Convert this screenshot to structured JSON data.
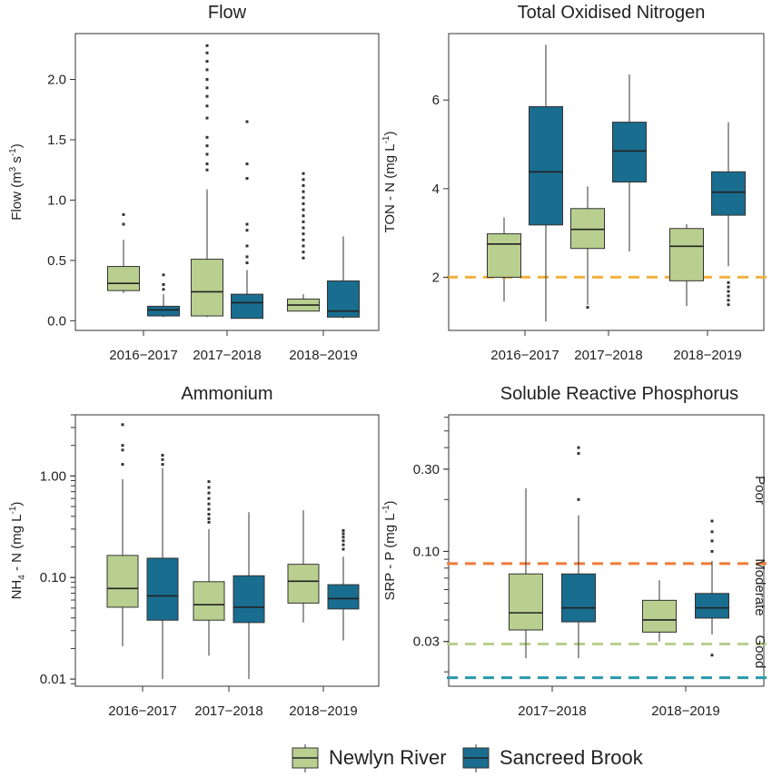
{
  "colors": {
    "newlyn": "#b9cf8f",
    "sancreed": "#196d8f",
    "orange": "#f2b13f",
    "poor": "#ef7b39",
    "good": "#b9cf8f",
    "high": "#2a98ad"
  },
  "legend": [
    {
      "label": "Newlyn River",
      "color": "#b9cf8f"
    },
    {
      "label": "Sancreed Brook",
      "color": "#196d8f"
    }
  ],
  "chart_data": [
    {
      "type": "box",
      "title": "Flow",
      "ylabel": "Flow (m³ s⁻¹)",
      "ylabel_parts": [
        "Flow (m",
        "3",
        " s",
        "-1",
        ")"
      ],
      "scale": "linear",
      "ylim": [
        -0.08,
        2.38
      ],
      "yticks": [
        0.0,
        0.5,
        1.0,
        1.5,
        2.0
      ],
      "ytick_labels": [
        "0.0",
        "0.5",
        "1.0",
        "1.5",
        "2.0"
      ],
      "categories": [
        "2016−2017",
        "2017−2018",
        "2018−2019"
      ],
      "series": [
        {
          "name": "Newlyn River",
          "color": "#b9cf8f",
          "boxes": [
            {
              "category": "2016−2017",
              "min": 0.23,
              "q1": 0.25,
              "median": 0.31,
              "q3": 0.45,
              "max": 0.67,
              "outliers": [
                0.8,
                0.88
              ]
            },
            {
              "category": "2017−2018",
              "min": 0.03,
              "q1": 0.04,
              "median": 0.24,
              "q3": 0.51,
              "max": 1.09,
              "outliers": [
                1.25,
                1.3,
                1.38,
                1.45,
                1.52,
                1.68,
                1.78,
                1.86,
                1.93,
                2.0,
                2.08,
                2.15,
                2.22,
                2.28
              ]
            },
            {
              "category": "2018−2019",
              "min": 0.08,
              "q1": 0.08,
              "median": 0.13,
              "q3": 0.18,
              "max": 0.22,
              "outliers": [
                0.52,
                0.57,
                0.62,
                0.67,
                0.72,
                0.77,
                0.82,
                0.87,
                0.92,
                0.97,
                1.02,
                1.07,
                1.12,
                1.17,
                1.22
              ]
            }
          ]
        },
        {
          "name": "Sancreed Brook",
          "color": "#196d8f",
          "boxes": [
            {
              "category": "2016−2017",
              "min": 0.03,
              "q1": 0.04,
              "median": 0.09,
              "q3": 0.12,
              "max": 0.22,
              "outliers": [
                0.26,
                0.3,
                0.38
              ]
            },
            {
              "category": "2017−2018",
              "min": 0.02,
              "q1": 0.02,
              "median": 0.15,
              "q3": 0.22,
              "max": 0.42,
              "outliers": [
                0.48,
                0.53,
                0.62,
                0.75,
                0.8,
                1.18,
                1.3,
                1.65
              ]
            },
            {
              "category": "2018−2019",
              "min": 0.02,
              "q1": 0.03,
              "median": 0.08,
              "q3": 0.33,
              "max": 0.7,
              "outliers": []
            }
          ]
        }
      ],
      "reference_lines": []
    },
    {
      "type": "box",
      "title": "Total Oxidised Nitrogen",
      "ylabel": "TON - N (mg L⁻¹)",
      "ylabel_parts": [
        "TON - N (mg L",
        "-1",
        ")"
      ],
      "scale": "linear",
      "ylim": [
        0.8,
        7.5
      ],
      "yticks": [
        2,
        4,
        6
      ],
      "ytick_labels": [
        "2",
        "4",
        "6"
      ],
      "categories": [
        "2016−2017",
        "2017−2018",
        "2018−2019"
      ],
      "series": [
        {
          "name": "Newlyn River",
          "color": "#b9cf8f",
          "boxes": [
            {
              "category": "2016−2017",
              "min": 1.45,
              "q1": 2.0,
              "median": 2.75,
              "q3": 2.98,
              "max": 3.35,
              "outliers": []
            },
            {
              "category": "2017−2018",
              "min": 1.38,
              "q1": 2.65,
              "median": 3.08,
              "q3": 3.55,
              "max": 4.05,
              "outliers": [
                1.32
              ]
            },
            {
              "category": "2018−2019",
              "min": 1.35,
              "q1": 1.92,
              "median": 2.7,
              "q3": 3.1,
              "max": 3.2,
              "outliers": []
            }
          ]
        },
        {
          "name": "Sancreed Brook",
          "color": "#196d8f",
          "boxes": [
            {
              "category": "2016−2017",
              "min": 1.0,
              "q1": 3.18,
              "median": 4.38,
              "q3": 5.85,
              "max": 7.25,
              "outliers": []
            },
            {
              "category": "2017−2018",
              "min": 2.58,
              "q1": 4.15,
              "median": 4.85,
              "q3": 5.5,
              "max": 6.58,
              "outliers": []
            },
            {
              "category": "2018−2019",
              "min": 2.25,
              "q1": 3.4,
              "median": 3.92,
              "q3": 4.38,
              "max": 5.5,
              "outliers": [
                1.38,
                1.48,
                1.58,
                1.68,
                1.78,
                1.88
              ]
            }
          ]
        }
      ],
      "reference_lines": [
        {
          "y": 2.0,
          "color": "#f2b13f"
        }
      ]
    },
    {
      "type": "box",
      "title": "Ammonium",
      "ylabel": "NH₄ - N (mg L⁻¹)",
      "ylabel_parts": [
        "NH",
        "4",
        " - N (mg L",
        "-1",
        ")"
      ],
      "scale": "log",
      "ylim": [
        0.0085,
        4.0
      ],
      "yticks": [
        0.01,
        0.1,
        1.0
      ],
      "ytick_labels": [
        "0.01",
        "0.10",
        "1.00"
      ],
      "categories": [
        "2016−2017",
        "2017−2018",
        "2018−2019"
      ],
      "series": [
        {
          "name": "Newlyn River",
          "color": "#b9cf8f",
          "boxes": [
            {
              "category": "2016−2017",
              "min": 0.021,
              "q1": 0.051,
              "median": 0.078,
              "q3": 0.165,
              "max": 0.93,
              "outliers": [
                1.3,
                1.8,
                2.0,
                3.2
              ]
            },
            {
              "category": "2017−2018",
              "min": 0.017,
              "q1": 0.038,
              "median": 0.054,
              "q3": 0.091,
              "max": 0.3,
              "outliers": [
                0.35,
                0.38,
                0.42,
                0.47,
                0.53,
                0.6,
                0.68,
                0.77,
                0.88
              ]
            },
            {
              "category": "2018−2019",
              "min": 0.036,
              "q1": 0.056,
              "median": 0.092,
              "q3": 0.135,
              "max": 0.46,
              "outliers": []
            }
          ]
        },
        {
          "name": "Sancreed Brook",
          "color": "#196d8f",
          "boxes": [
            {
              "category": "2016−2017",
              "min": 0.01,
              "q1": 0.038,
              "median": 0.066,
              "q3": 0.155,
              "max": 1.2,
              "outliers": [
                1.3,
                1.45,
                1.6
              ]
            },
            {
              "category": "2017−2018",
              "min": 0.01,
              "q1": 0.036,
              "median": 0.051,
              "q3": 0.104,
              "max": 0.44,
              "outliers": []
            },
            {
              "category": "2018−2019",
              "min": 0.024,
              "q1": 0.049,
              "median": 0.062,
              "q3": 0.085,
              "max": 0.16,
              "outliers": [
                0.19,
                0.21,
                0.23,
                0.25,
                0.27,
                0.29
              ]
            }
          ]
        }
      ],
      "reference_lines": []
    },
    {
      "type": "box",
      "title": "Soluble Reactive Phosphorus",
      "ylabel": "SRP - P (mg L⁻¹)",
      "ylabel_parts": [
        "SRP - P (mg L",
        "-1",
        ")"
      ],
      "scale": "log",
      "ylim": [
        0.0165,
        0.62
      ],
      "yticks": [
        0.03,
        0.1,
        0.3
      ],
      "ytick_labels": [
        "0.03",
        "0.10",
        "0.30"
      ],
      "categories": [
        "2017−2018",
        "2018−2019"
      ],
      "series": [
        {
          "name": "Newlyn River",
          "color": "#b9cf8f",
          "boxes": [
            {
              "category": "2017−2018",
              "min": 0.024,
              "q1": 0.035,
              "median": 0.044,
              "q3": 0.074,
              "max": 0.232,
              "outliers": []
            },
            {
              "category": "2018−2019",
              "min": 0.03,
              "q1": 0.034,
              "median": 0.04,
              "q3": 0.052,
              "max": 0.068,
              "outliers": []
            }
          ]
        },
        {
          "name": "Sancreed Brook",
          "color": "#196d8f",
          "boxes": [
            {
              "category": "2017−2018",
              "min": 0.024,
              "q1": 0.039,
              "median": 0.047,
              "q3": 0.074,
              "max": 0.162,
              "outliers": [
                0.2,
                0.37,
                0.4
              ]
            },
            {
              "category": "2018−2019",
              "min": 0.033,
              "q1": 0.041,
              "median": 0.047,
              "q3": 0.057,
              "max": 0.088,
              "outliers": [
                0.025,
                0.1,
                0.115,
                0.13,
                0.15
              ]
            }
          ]
        }
      ],
      "reference_lines": [
        {
          "y": 0.085,
          "color": "#ef7b39"
        },
        {
          "y": 0.029,
          "color": "#b9cf8f"
        },
        {
          "y": 0.0185,
          "color": "#2a98ad"
        }
      ],
      "zone_labels": [
        "Poor",
        "Moderate",
        "Good"
      ]
    }
  ]
}
